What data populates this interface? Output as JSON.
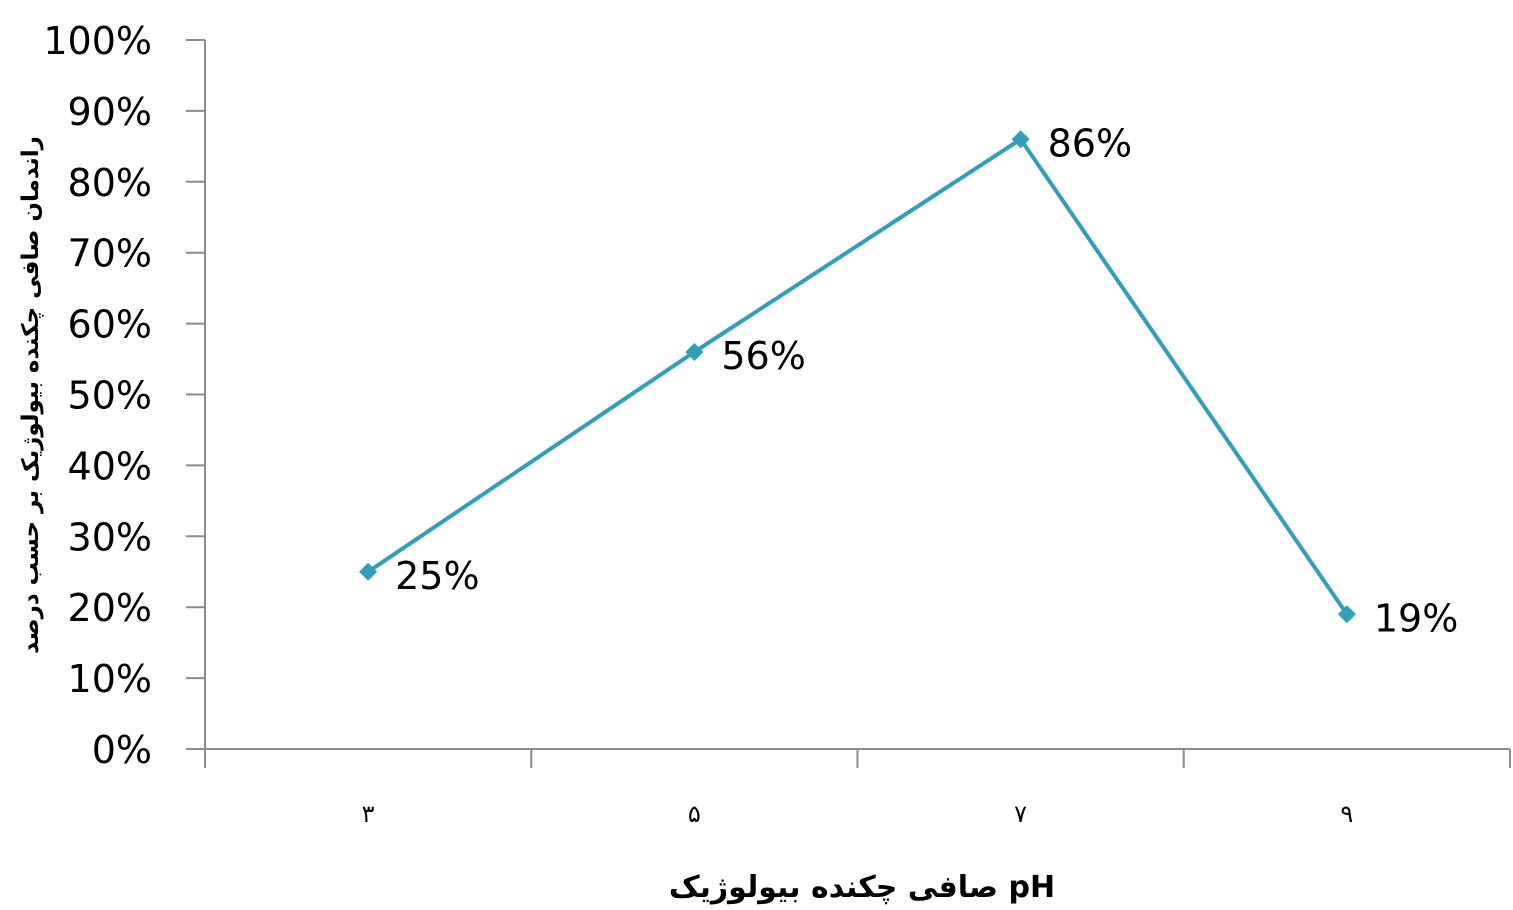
{
  "chart_data": {
    "type": "line",
    "categories": [
      "۳",
      "۵",
      "۷",
      "۹"
    ],
    "series": [
      {
        "values": [
          25,
          56,
          86,
          19
        ]
      }
    ],
    "data_labels": [
      "25%",
      "56%",
      "86%",
      "19%"
    ],
    "y_ticks": [
      "0%",
      "10%",
      "20%",
      "30%",
      "40%",
      "50%",
      "60%",
      "70%",
      "80%",
      "90%",
      "100%"
    ],
    "ylim": [
      0,
      100
    ],
    "xlabel": "pH صافی چکنده بیولوژیک",
    "ylabel": "راندمان صافی چکنده بیولوژیک بر حسب درصد",
    "grid": false,
    "legend": "none",
    "line_color": "#2e9fbd",
    "marker": "diamond"
  }
}
